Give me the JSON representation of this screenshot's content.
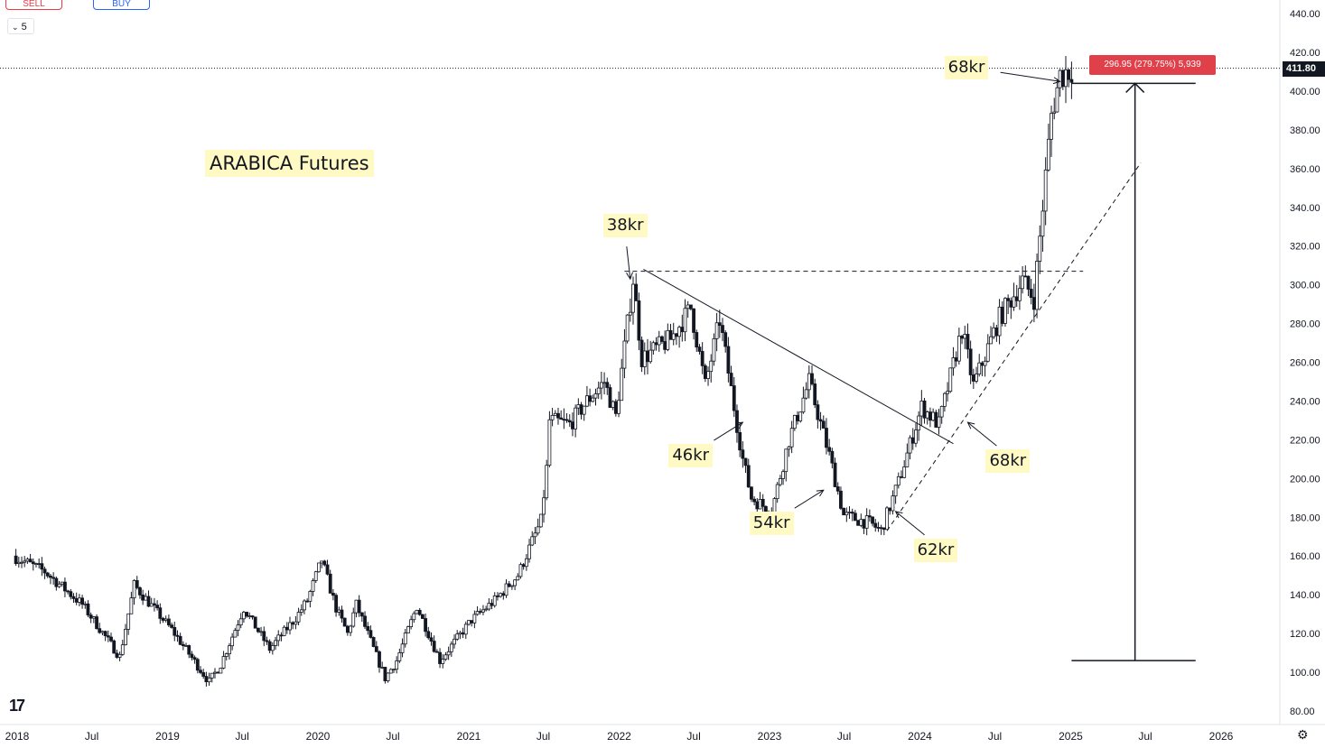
{
  "toolbar": {
    "sell_label": "SELL",
    "buy_label": "BUY",
    "lot_value": "5"
  },
  "measure_label": "296.95 (279.75%) 5,939",
  "price_tag": "411.80",
  "icons": [
    "tradingview-logo-icon",
    "settings-icon",
    "chevron-down-icon"
  ],
  "chart_data": {
    "type": "candlestick",
    "title": "ARABICA Futures",
    "y_axis": {
      "ticks": [
        80,
        100,
        120,
        140,
        160,
        180,
        200,
        220,
        240,
        260,
        280,
        300,
        320,
        340,
        360,
        380,
        400,
        420,
        440
      ],
      "labels": [
        "80.00",
        "100.00",
        "120.00",
        "140.00",
        "160.00",
        "180.00",
        "200.00",
        "220.00",
        "240.00",
        "260.00",
        "280.00",
        "300.00",
        "320.00",
        "340.00",
        "360.00",
        "380.00",
        "400.00",
        "420.00",
        "440.00"
      ],
      "ylim": [
        73,
        446
      ],
      "position": "right"
    },
    "x_axis": {
      "ticks": [
        {
          "label": "2018",
          "date": "2018-01-01"
        },
        {
          "label": "Jul",
          "date": "2018-07-01"
        },
        {
          "label": "2019",
          "date": "2019-01-01"
        },
        {
          "label": "Jul",
          "date": "2019-07-01"
        },
        {
          "label": "2020",
          "date": "2020-01-01"
        },
        {
          "label": "Jul",
          "date": "2020-07-01"
        },
        {
          "label": "2021",
          "date": "2021-01-01"
        },
        {
          "label": "Jul",
          "date": "2021-07-01"
        },
        {
          "label": "2022",
          "date": "2022-01-01"
        },
        {
          "label": "Jul",
          "date": "2022-07-01"
        },
        {
          "label": "2023",
          "date": "2023-01-01"
        },
        {
          "label": "Jul",
          "date": "2023-07-01"
        },
        {
          "label": "2024",
          "date": "2024-01-01"
        },
        {
          "label": "Jul",
          "date": "2024-07-01"
        },
        {
          "label": "2025",
          "date": "2025-01-01"
        },
        {
          "label": "Jul",
          "date": "2025-07-01"
        },
        {
          "label": "2026",
          "date": "2026-01-01"
        }
      ]
    },
    "last_price": 411.8,
    "anchors": [
      {
        "date": "2017-12-29",
        "price": 160
      },
      {
        "date": "2018-03-16",
        "price": 152
      },
      {
        "date": "2018-06-15",
        "price": 135
      },
      {
        "date": "2018-09-14",
        "price": 108
      },
      {
        "date": "2018-10-19",
        "price": 145
      },
      {
        "date": "2019-01-18",
        "price": 122
      },
      {
        "date": "2019-04-19",
        "price": 95
      },
      {
        "date": "2019-05-17",
        "price": 104
      },
      {
        "date": "2019-07-12",
        "price": 133
      },
      {
        "date": "2019-09-13",
        "price": 112
      },
      {
        "date": "2019-11-15",
        "price": 128
      },
      {
        "date": "2019-12-13",
        "price": 137
      },
      {
        "date": "2020-01-17",
        "price": 158
      },
      {
        "date": "2020-02-21",
        "price": 133
      },
      {
        "date": "2020-03-20",
        "price": 120
      },
      {
        "date": "2020-04-10",
        "price": 135
      },
      {
        "date": "2020-06-19",
        "price": 97
      },
      {
        "date": "2020-07-17",
        "price": 106
      },
      {
        "date": "2020-09-04",
        "price": 134
      },
      {
        "date": "2020-10-30",
        "price": 106
      },
      {
        "date": "2021-01-15",
        "price": 127
      },
      {
        "date": "2021-03-12",
        "price": 137
      },
      {
        "date": "2021-05-07",
        "price": 150
      },
      {
        "date": "2021-07-02",
        "price": 178
      },
      {
        "date": "2021-07-16",
        "price": 205
      },
      {
        "date": "2021-07-23",
        "price": 230
      },
      {
        "date": "2021-09-10",
        "price": 228
      },
      {
        "date": "2021-10-22",
        "price": 240
      },
      {
        "date": "2021-12-03",
        "price": 250
      },
      {
        "date": "2021-12-31",
        "price": 232
      },
      {
        "date": "2022-02-11",
        "price": 303
      },
      {
        "date": "2022-03-04",
        "price": 262
      },
      {
        "date": "2022-05-13",
        "price": 272
      },
      {
        "date": "2022-07-01",
        "price": 288
      },
      {
        "date": "2022-08-05",
        "price": 248
      },
      {
        "date": "2022-09-09",
        "price": 282
      },
      {
        "date": "2022-11-04",
        "price": 210
      },
      {
        "date": "2022-11-25",
        "price": 190
      },
      {
        "date": "2023-01-13",
        "price": 183
      },
      {
        "date": "2023-02-24",
        "price": 220
      },
      {
        "date": "2023-04-14",
        "price": 250
      },
      {
        "date": "2023-06-02",
        "price": 212
      },
      {
        "date": "2023-07-07",
        "price": 181
      },
      {
        "date": "2023-09-08",
        "price": 177
      },
      {
        "date": "2023-10-06",
        "price": 173
      },
      {
        "date": "2023-11-17",
        "price": 198
      },
      {
        "date": "2024-01-12",
        "price": 237
      },
      {
        "date": "2024-02-23",
        "price": 228
      },
      {
        "date": "2024-04-19",
        "price": 277
      },
      {
        "date": "2024-05-17",
        "price": 248
      },
      {
        "date": "2024-07-19",
        "price": 283
      },
      {
        "date": "2024-09-13",
        "price": 302
      },
      {
        "date": "2024-10-11",
        "price": 293
      },
      {
        "date": "2024-11-22",
        "price": 388
      },
      {
        "date": "2024-12-13",
        "price": 408
      },
      {
        "date": "2025-01-10",
        "price": 411.8
      }
    ],
    "annotations": [
      {
        "text": "38kr",
        "date": "2022-01-28",
        "price": 303,
        "label_pos": "above",
        "arrow": true
      },
      {
        "text": "46kr",
        "date": "2022-10-28",
        "price": 229,
        "label_pos": "below-left",
        "arrow": true
      },
      {
        "text": "54kr",
        "date": "2023-05-12",
        "price": 194,
        "label_pos": "below-left",
        "arrow": true
      },
      {
        "text": "62kr",
        "date": "2023-11-03",
        "price": 183,
        "label_pos": "below-right",
        "arrow": true
      },
      {
        "text": "68kr",
        "date": "2024-04-26",
        "price": 229,
        "label_pos": "below-right",
        "arrow": true
      },
      {
        "text": "68kr",
        "date": "2024-12-06",
        "price": 405,
        "label_pos": "left",
        "arrow": true
      }
    ],
    "trendlines": [
      {
        "style": "solid",
        "from": {
          "date": "2022-03-01",
          "price": 308
        },
        "to": {
          "date": "2024-03-22",
          "price": 218
        }
      },
      {
        "style": "dashed",
        "from": {
          "date": "2022-01-14",
          "price": 307
        },
        "to": {
          "date": "2025-01-31",
          "price": 307
        }
      },
      {
        "style": "dashed",
        "from": {
          "date": "2023-10-13",
          "price": 173
        },
        "to": {
          "date": "2025-06-20",
          "price": 363
        }
      }
    ],
    "measure": {
      "from_price": 106,
      "to_price": 404,
      "date": "2025-06-06",
      "bracket_from": "2025-01-03",
      "bracket_to": "2025-10-31",
      "label": "296.95 (279.75%) 5,939"
    }
  }
}
